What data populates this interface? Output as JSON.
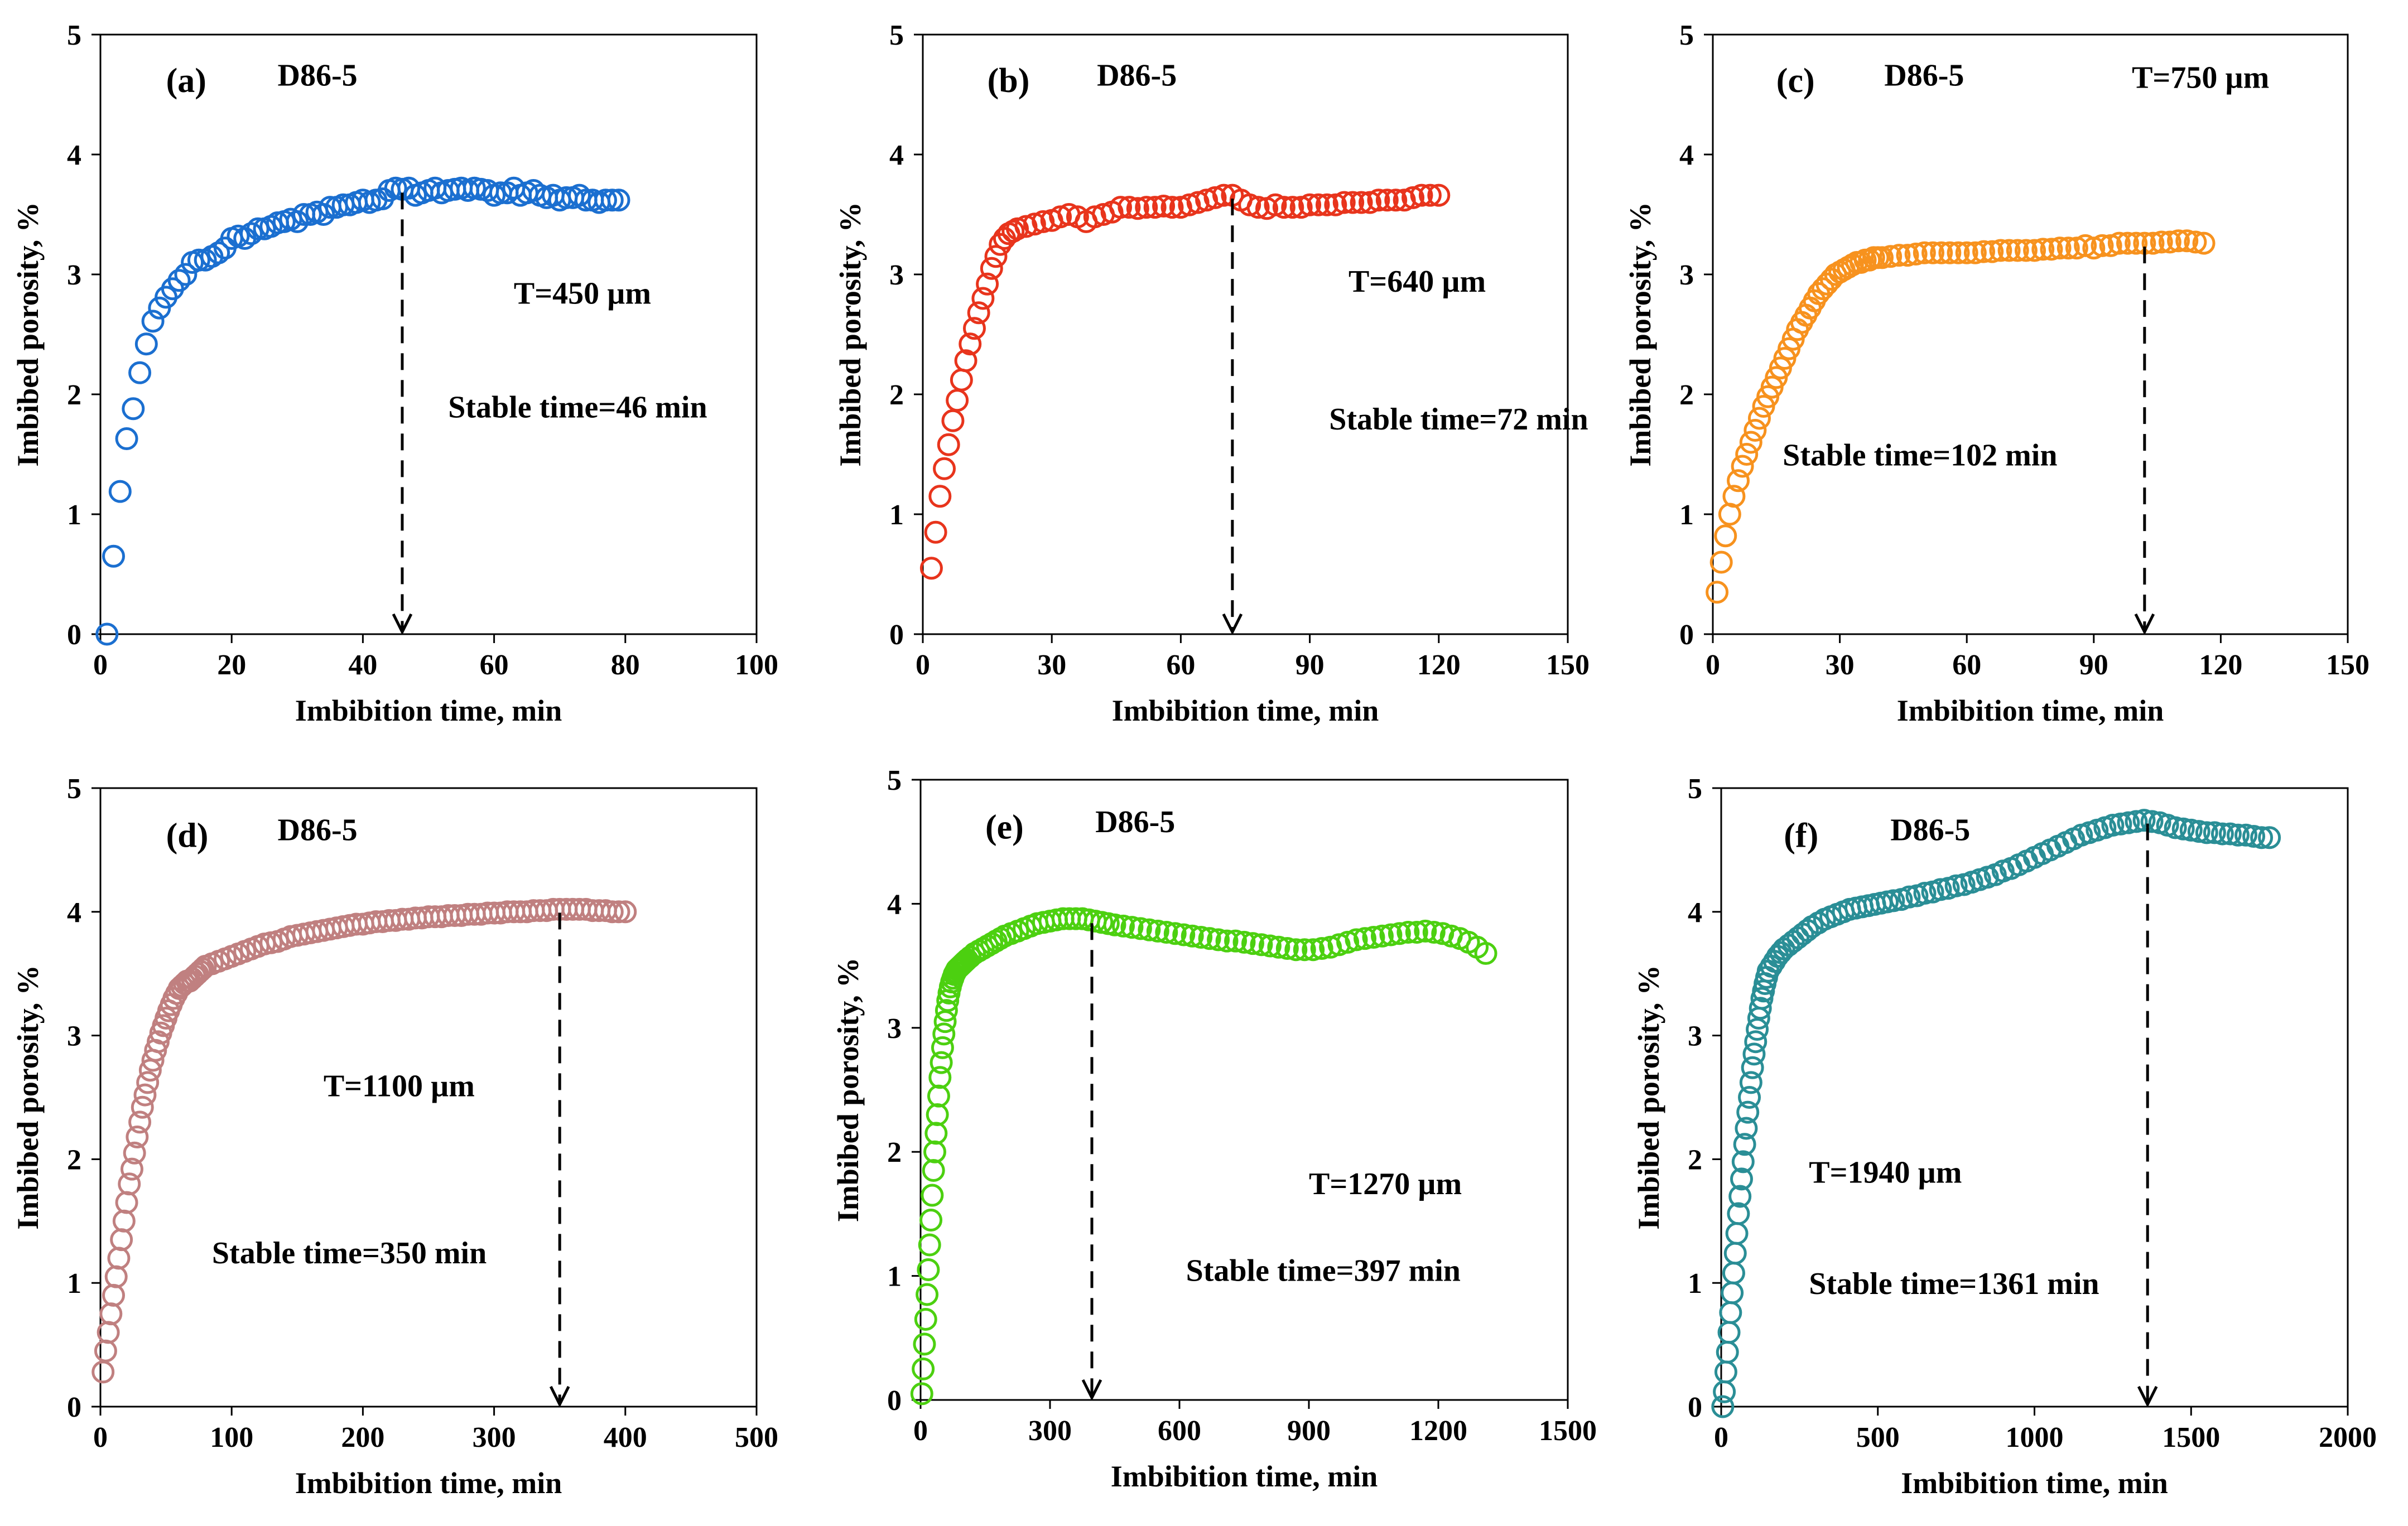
{
  "chart_data": [
    {
      "type": "scatter",
      "panel": "(a)",
      "title": "D86-5",
      "xlabel": "Imbibition time, min",
      "ylabel": "Imbibed porosity, %",
      "xlim": [
        0,
        100
      ],
      "ylim": [
        0,
        5
      ],
      "xticks": [
        0,
        20,
        40,
        60,
        80,
        100
      ],
      "yticks": [
        0,
        1,
        2,
        3,
        4,
        5
      ],
      "color": "#1b6fd0",
      "annotations": {
        "thickness": "T=450 µm",
        "stable": "Stable time=46 min"
      },
      "stable_time": 46,
      "x": [
        1,
        2,
        3,
        4,
        5,
        6,
        7,
        8,
        9,
        10,
        11,
        12,
        13,
        14,
        15,
        16,
        17,
        18,
        19,
        20,
        21,
        22,
        23,
        24,
        25,
        26,
        27,
        28,
        29,
        30,
        31,
        32,
        33,
        34,
        35,
        36,
        37,
        38,
        39,
        40,
        41,
        42,
        43,
        44,
        45,
        46,
        47,
        48,
        49,
        50,
        51,
        52,
        53,
        54,
        55,
        56,
        57,
        58,
        59,
        60,
        61,
        62,
        63,
        64,
        65,
        66,
        67,
        68,
        69,
        70,
        71,
        72,
        73,
        74,
        75,
        76,
        77,
        78,
        79
      ],
      "y": [
        0.0,
        0.65,
        1.19,
        1.63,
        1.88,
        2.18,
        2.42,
        2.61,
        2.72,
        2.81,
        2.88,
        2.95,
        3.0,
        3.1,
        3.12,
        3.12,
        3.15,
        3.18,
        3.22,
        3.3,
        3.32,
        3.3,
        3.34,
        3.38,
        3.38,
        3.4,
        3.43,
        3.44,
        3.46,
        3.44,
        3.5,
        3.5,
        3.52,
        3.5,
        3.56,
        3.56,
        3.58,
        3.58,
        3.6,
        3.62,
        3.6,
        3.62,
        3.63,
        3.7,
        3.72,
        3.71,
        3.72,
        3.66,
        3.68,
        3.7,
        3.72,
        3.68,
        3.7,
        3.71,
        3.72,
        3.7,
        3.72,
        3.71,
        3.7,
        3.66,
        3.68,
        3.68,
        3.72,
        3.66,
        3.68,
        3.7,
        3.66,
        3.64,
        3.66,
        3.62,
        3.64,
        3.64,
        3.66,
        3.62,
        3.62,
        3.6,
        3.62,
        3.62,
        3.62
      ]
    },
    {
      "type": "scatter",
      "panel": "(b)",
      "title": "D86-5",
      "xlabel": "Imbibition time, min",
      "ylabel": "Imbibed porosity, %",
      "xlim": [
        0,
        150
      ],
      "ylim": [
        0,
        5
      ],
      "xticks": [
        0,
        30,
        60,
        90,
        120,
        150
      ],
      "yticks": [
        0,
        1,
        2,
        3,
        4,
        5
      ],
      "color": "#e8341c",
      "annotations": {
        "thickness": "T=640 µm",
        "stable": "Stable time=72 min"
      },
      "stable_time": 72,
      "x": [
        2,
        3,
        4,
        5,
        6,
        7,
        8,
        9,
        10,
        11,
        12,
        13,
        14,
        15,
        16,
        17,
        18,
        19,
        20,
        21,
        22,
        24,
        26,
        28,
        30,
        32,
        34,
        36,
        38,
        40,
        42,
        44,
        46,
        48,
        50,
        52,
        54,
        56,
        58,
        60,
        62,
        64,
        66,
        68,
        70,
        72,
        74,
        76,
        78,
        80,
        82,
        84,
        86,
        88,
        90,
        92,
        94,
        96,
        98,
        100,
        102,
        104,
        106,
        108,
        110,
        112,
        114,
        116,
        118,
        120
      ],
      "y": [
        0.55,
        0.85,
        1.15,
        1.38,
        1.58,
        1.78,
        1.95,
        2.12,
        2.28,
        2.42,
        2.55,
        2.68,
        2.8,
        2.92,
        3.05,
        3.15,
        3.25,
        3.3,
        3.34,
        3.36,
        3.38,
        3.4,
        3.42,
        3.44,
        3.45,
        3.48,
        3.5,
        3.48,
        3.44,
        3.48,
        3.5,
        3.52,
        3.56,
        3.56,
        3.55,
        3.56,
        3.56,
        3.57,
        3.56,
        3.56,
        3.58,
        3.6,
        3.62,
        3.64,
        3.66,
        3.66,
        3.62,
        3.58,
        3.56,
        3.55,
        3.58,
        3.56,
        3.56,
        3.56,
        3.58,
        3.58,
        3.58,
        3.58,
        3.6,
        3.6,
        3.6,
        3.6,
        3.62,
        3.62,
        3.62,
        3.62,
        3.64,
        3.66,
        3.66,
        3.66
      ]
    },
    {
      "type": "scatter",
      "panel": "(c)",
      "title": "D86-5",
      "xlabel": "Imbibition time, min",
      "ylabel": "Imbibed porosity, %",
      "xlim": [
        0,
        150
      ],
      "ylim": [
        0,
        5
      ],
      "xticks": [
        0,
        30,
        60,
        90,
        120,
        150
      ],
      "yticks": [
        0,
        1,
        2,
        3,
        4,
        5
      ],
      "color": "#f7921e",
      "annotations": {
        "thickness": "T=750 µm",
        "stable": "Stable time=102 min"
      },
      "stable_time": 102,
      "x": [
        1,
        2,
        3,
        4,
        5,
        6,
        7,
        8,
        9,
        10,
        11,
        12,
        13,
        14,
        15,
        16,
        17,
        18,
        19,
        20,
        21,
        22,
        23,
        24,
        25,
        26,
        27,
        28,
        29,
        30,
        31,
        32,
        33,
        34,
        35,
        36,
        37,
        38,
        39,
        40,
        42,
        44,
        46,
        48,
        50,
        52,
        54,
        56,
        58,
        60,
        62,
        64,
        66,
        68,
        70,
        72,
        74,
        76,
        78,
        80,
        82,
        84,
        86,
        88,
        90,
        92,
        94,
        96,
        98,
        100,
        102,
        104,
        106,
        108,
        110,
        112,
        114,
        116
      ],
      "y": [
        0.35,
        0.6,
        0.82,
        1.0,
        1.15,
        1.28,
        1.4,
        1.5,
        1.6,
        1.7,
        1.8,
        1.9,
        1.98,
        2.06,
        2.14,
        2.22,
        2.3,
        2.38,
        2.46,
        2.54,
        2.6,
        2.66,
        2.72,
        2.78,
        2.84,
        2.88,
        2.92,
        2.96,
        3.0,
        3.02,
        3.04,
        3.06,
        3.08,
        3.1,
        3.1,
        3.12,
        3.12,
        3.14,
        3.14,
        3.14,
        3.15,
        3.16,
        3.16,
        3.17,
        3.18,
        3.18,
        3.18,
        3.18,
        3.18,
        3.18,
        3.18,
        3.19,
        3.19,
        3.2,
        3.2,
        3.2,
        3.2,
        3.2,
        3.21,
        3.21,
        3.22,
        3.22,
        3.22,
        3.24,
        3.22,
        3.24,
        3.24,
        3.26,
        3.26,
        3.26,
        3.26,
        3.26,
        3.27,
        3.27,
        3.28,
        3.28,
        3.27,
        3.26
      ]
    },
    {
      "type": "scatter",
      "panel": "(d)",
      "title": "D86-5",
      "xlabel": "Imbibition time, min",
      "ylabel": "Imbibed porosity, %",
      "xlim": [
        0,
        500
      ],
      "ylim": [
        0,
        5
      ],
      "xticks": [
        0,
        100,
        200,
        300,
        400,
        500
      ],
      "yticks": [
        0,
        1,
        2,
        3,
        4,
        5
      ],
      "color": "#c08080",
      "annotations": {
        "thickness": "T=1100 µm",
        "stable": "Stable time=350 min"
      },
      "stable_time": 350,
      "x": [
        2,
        4,
        6,
        8,
        10,
        12,
        14,
        16,
        18,
        20,
        22,
        24,
        26,
        28,
        30,
        32,
        34,
        36,
        38,
        40,
        42,
        44,
        46,
        48,
        50,
        52,
        54,
        56,
        58,
        60,
        62,
        64,
        66,
        68,
        70,
        72,
        74,
        76,
        78,
        80,
        85,
        90,
        95,
        100,
        105,
        110,
        115,
        120,
        125,
        130,
        135,
        140,
        145,
        150,
        155,
        160,
        165,
        170,
        175,
        180,
        185,
        190,
        195,
        200,
        205,
        210,
        215,
        220,
        225,
        230,
        235,
        240,
        245,
        250,
        255,
        260,
        265,
        270,
        275,
        280,
        285,
        290,
        295,
        300,
        305,
        310,
        315,
        320,
        325,
        330,
        335,
        340,
        345,
        350,
        355,
        360,
        365,
        370,
        375,
        380,
        385,
        390,
        395,
        400
      ],
      "y": [
        0.28,
        0.45,
        0.6,
        0.75,
        0.9,
        1.05,
        1.2,
        1.35,
        1.5,
        1.65,
        1.8,
        1.92,
        2.05,
        2.18,
        2.3,
        2.42,
        2.52,
        2.62,
        2.72,
        2.8,
        2.88,
        2.95,
        3.02,
        3.08,
        3.14,
        3.2,
        3.25,
        3.3,
        3.34,
        3.38,
        3.4,
        3.42,
        3.44,
        3.44,
        3.46,
        3.48,
        3.5,
        3.52,
        3.54,
        3.56,
        3.58,
        3.6,
        3.62,
        3.64,
        3.66,
        3.68,
        3.7,
        3.72,
        3.74,
        3.75,
        3.76,
        3.78,
        3.8,
        3.81,
        3.82,
        3.83,
        3.84,
        3.85,
        3.86,
        3.87,
        3.88,
        3.89,
        3.9,
        3.9,
        3.91,
        3.92,
        3.92,
        3.93,
        3.93,
        3.94,
        3.94,
        3.95,
        3.95,
        3.96,
        3.96,
        3.96,
        3.97,
        3.97,
        3.97,
        3.98,
        3.98,
        3.98,
        3.99,
        3.99,
        3.99,
        4.0,
        4.0,
        4.0,
        4.0,
        4.01,
        4.01,
        4.01,
        4.02,
        4.02,
        4.02,
        4.02,
        4.02,
        4.02,
        4.01,
        4.01,
        4.01,
        4.0,
        4.0,
        4.0
      ]
    },
    {
      "type": "scatter",
      "panel": "(e)",
      "title": "D86-5",
      "xlabel": "Imbibition time, min",
      "ylabel": "Imbibed porosity, %",
      "xlim": [
        0,
        1500
      ],
      "ylim": [
        0,
        5
      ],
      "xticks": [
        0,
        300,
        600,
        900,
        1200,
        1500
      ],
      "yticks": [
        0,
        1,
        2,
        3,
        4,
        5
      ],
      "color": "#4cd010",
      "annotations": {
        "thickness": "T=1270 µm",
        "stable": "Stable time=397 min"
      },
      "stable_time": 397,
      "x": [
        3,
        6,
        9,
        12,
        15,
        18,
        21,
        24,
        27,
        30,
        33,
        36,
        39,
        42,
        45,
        48,
        51,
        54,
        57,
        60,
        63,
        66,
        69,
        72,
        75,
        78,
        81,
        84,
        87,
        90,
        93,
        96,
        99,
        102,
        105,
        108,
        115,
        125,
        135,
        145,
        155,
        165,
        175,
        185,
        195,
        210,
        225,
        240,
        255,
        270,
        285,
        300,
        315,
        330,
        345,
        360,
        375,
        390,
        405,
        420,
        435,
        450,
        470,
        490,
        510,
        530,
        550,
        570,
        590,
        610,
        630,
        650,
        670,
        690,
        710,
        730,
        750,
        770,
        790,
        810,
        830,
        850,
        870,
        890,
        910,
        930,
        950,
        970,
        990,
        1010,
        1030,
        1050,
        1070,
        1090,
        1110,
        1130,
        1150,
        1170,
        1190,
        1210,
        1230,
        1250,
        1270,
        1290,
        1310
      ],
      "y": [
        0.05,
        0.25,
        0.45,
        0.65,
        0.85,
        1.05,
        1.25,
        1.45,
        1.65,
        1.85,
        2.0,
        2.15,
        2.3,
        2.45,
        2.6,
        2.72,
        2.84,
        2.95,
        3.05,
        3.14,
        3.22,
        3.28,
        3.33,
        3.37,
        3.4,
        3.43,
        3.45,
        3.47,
        3.48,
        3.49,
        3.5,
        3.51,
        3.52,
        3.53,
        3.54,
        3.55,
        3.57,
        3.6,
        3.62,
        3.64,
        3.66,
        3.68,
        3.7,
        3.72,
        3.74,
        3.76,
        3.78,
        3.8,
        3.82,
        3.84,
        3.85,
        3.86,
        3.87,
        3.88,
        3.88,
        3.88,
        3.88,
        3.87,
        3.86,
        3.85,
        3.84,
        3.83,
        3.82,
        3.81,
        3.8,
        3.79,
        3.78,
        3.77,
        3.76,
        3.75,
        3.74,
        3.73,
        3.72,
        3.71,
        3.7,
        3.7,
        3.69,
        3.68,
        3.67,
        3.66,
        3.65,
        3.64,
        3.63,
        3.63,
        3.63,
        3.64,
        3.65,
        3.67,
        3.69,
        3.71,
        3.72,
        3.73,
        3.74,
        3.75,
        3.76,
        3.77,
        3.77,
        3.78,
        3.77,
        3.76,
        3.74,
        3.72,
        3.69,
        3.65,
        3.6
      ]
    },
    {
      "type": "scatter",
      "panel": "(f)",
      "title": "D86-5",
      "xlabel": "Imbibition time, min",
      "ylabel": "Imbibed porosity, %",
      "xlim": [
        0,
        2000
      ],
      "ylim": [
        0,
        5
      ],
      "xticks": [
        0,
        500,
        1000,
        1500,
        2000
      ],
      "yticks": [
        0,
        1,
        2,
        3,
        4,
        5
      ],
      "color": "#2a8e96",
      "annotations": {
        "thickness": "T=1940 µm",
        "stable": "Stable time=1361 min"
      },
      "stable_time": 1361,
      "x": [
        5,
        10,
        15,
        20,
        25,
        30,
        35,
        40,
        45,
        50,
        55,
        60,
        65,
        70,
        75,
        80,
        85,
        90,
        95,
        100,
        105,
        110,
        115,
        120,
        125,
        130,
        135,
        140,
        145,
        150,
        160,
        170,
        180,
        190,
        200,
        215,
        230,
        245,
        260,
        275,
        290,
        310,
        330,
        350,
        370,
        390,
        410,
        430,
        450,
        470,
        490,
        510,
        530,
        550,
        575,
        600,
        625,
        650,
        675,
        700,
        725,
        750,
        775,
        800,
        825,
        850,
        875,
        900,
        925,
        950,
        975,
        1000,
        1025,
        1050,
        1075,
        1100,
        1125,
        1150,
        1175,
        1200,
        1225,
        1250,
        1275,
        1300,
        1325,
        1350,
        1375,
        1400,
        1425,
        1450,
        1475,
        1500,
        1525,
        1550,
        1575,
        1600,
        1625,
        1650,
        1675,
        1700,
        1725,
        1750
      ],
      "y": [
        0.0,
        0.12,
        0.28,
        0.44,
        0.6,
        0.76,
        0.92,
        1.08,
        1.24,
        1.4,
        1.56,
        1.7,
        1.84,
        1.98,
        2.12,
        2.25,
        2.38,
        2.5,
        2.62,
        2.74,
        2.85,
        2.95,
        3.05,
        3.14,
        3.22,
        3.3,
        3.36,
        3.42,
        3.47,
        3.52,
        3.56,
        3.6,
        3.64,
        3.67,
        3.7,
        3.73,
        3.76,
        3.79,
        3.82,
        3.85,
        3.88,
        3.91,
        3.94,
        3.96,
        3.98,
        4.0,
        4.02,
        4.03,
        4.04,
        4.05,
        4.06,
        4.07,
        4.08,
        4.09,
        4.1,
        4.12,
        4.13,
        4.15,
        4.16,
        4.18,
        4.19,
        4.21,
        4.22,
        4.24,
        4.26,
        4.28,
        4.3,
        4.33,
        4.35,
        4.38,
        4.41,
        4.44,
        4.47,
        4.5,
        4.53,
        4.56,
        4.59,
        4.62,
        4.64,
        4.66,
        4.68,
        4.7,
        4.71,
        4.72,
        4.73,
        4.74,
        4.73,
        4.72,
        4.7,
        4.68,
        4.67,
        4.66,
        4.65,
        4.64,
        4.64,
        4.63,
        4.63,
        4.62,
        4.62,
        4.61,
        4.6,
        4.6
      ]
    }
  ]
}
